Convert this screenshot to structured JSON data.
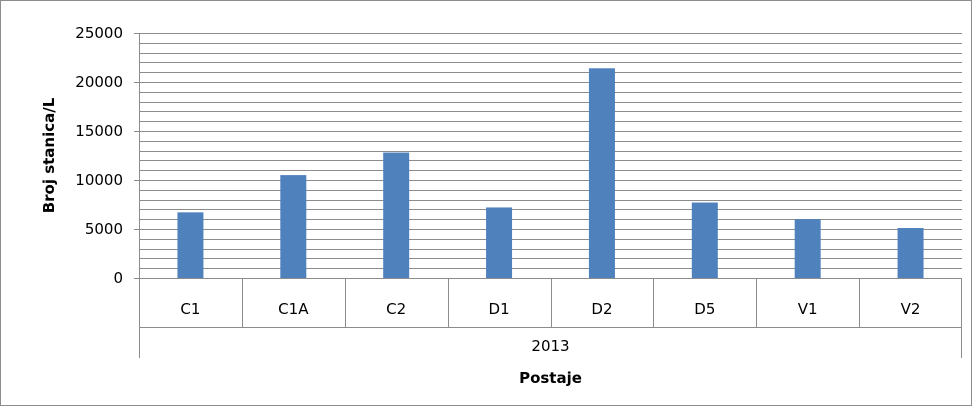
{
  "chart_data": {
    "type": "bar",
    "categories": [
      "C1",
      "C1A",
      "C2",
      "D1",
      "D2",
      "D5",
      "V1",
      "V2"
    ],
    "group_label": "2013",
    "series": [
      {
        "values": [
          6700,
          10500,
          12800,
          7200,
          21400,
          7700,
          6000,
          5100
        ]
      }
    ],
    "ylabel": "Broj stanica/L",
    "xlabel": "Postaje",
    "ylim": [
      0,
      25000
    ],
    "yticks": [
      0,
      5000,
      10000,
      15000,
      20000,
      25000
    ],
    "minor_grid_step": 1000,
    "grid": true,
    "legend": "none",
    "colors": {
      "bar": "#4f81bd",
      "grid": "#8c8c8c",
      "axis": "#8c8c8c"
    }
  }
}
